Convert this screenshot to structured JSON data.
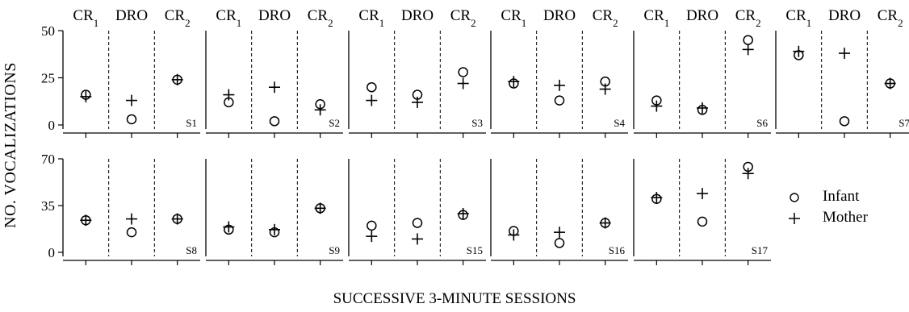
{
  "figure": {
    "ylabel": "NO. VOCALIZATIONS",
    "xlabel": "SUCCESSIVE 3-MINUTE SESSIONS"
  },
  "legend": {
    "infant": "Infant",
    "mother": "Mother"
  },
  "chart_data": {
    "type": "scatter",
    "phases": [
      "CR1",
      "DRO",
      "CR2"
    ],
    "series": [
      {
        "name": "Infant",
        "marker": "circle"
      },
      {
        "name": "Mother",
        "marker": "plus"
      }
    ],
    "rows": [
      {
        "ylim": [
          0,
          50
        ],
        "yticks": [
          "0",
          "25",
          "50"
        ]
      },
      {
        "ylim": [
          0,
          70
        ],
        "yticks": [
          "0",
          "35",
          "70"
        ]
      }
    ],
    "panels": [
      {
        "subject": "S1",
        "row": 0,
        "infant": [
          16,
          3,
          24
        ],
        "mother": [
          15,
          13,
          24
        ]
      },
      {
        "subject": "S2",
        "row": 0,
        "infant": [
          12,
          2,
          11
        ],
        "mother": [
          16,
          20,
          8
        ]
      },
      {
        "subject": "S3",
        "row": 0,
        "infant": [
          20,
          16,
          28
        ],
        "mother": [
          13,
          12,
          22
        ]
      },
      {
        "subject": "S4",
        "row": 0,
        "infant": [
          22,
          13,
          23
        ],
        "mother": [
          23,
          21,
          19
        ]
      },
      {
        "subject": "S6",
        "row": 0,
        "infant": [
          13,
          8,
          45
        ],
        "mother": [
          10,
          9,
          40
        ]
      },
      {
        "subject": "S7",
        "row": 0,
        "infant": [
          37,
          2,
          22
        ],
        "mother": [
          39,
          38,
          22
        ]
      },
      {
        "subject": "S8",
        "row": 1,
        "infant": [
          24,
          15,
          25
        ],
        "mother": [
          24,
          25,
          25
        ]
      },
      {
        "subject": "S9",
        "row": 1,
        "infant": [
          17,
          15,
          33
        ],
        "mother": [
          19,
          17,
          33
        ]
      },
      {
        "subject": "S15",
        "row": 1,
        "infant": [
          20,
          22,
          28
        ],
        "mother": [
          12,
          10,
          29
        ]
      },
      {
        "subject": "S16",
        "row": 1,
        "infant": [
          16,
          7,
          22
        ],
        "mother": [
          13,
          15,
          22
        ]
      },
      {
        "subject": "S17",
        "row": 1,
        "infant": [
          40,
          23,
          64
        ],
        "mother": [
          41,
          44,
          59
        ]
      }
    ]
  }
}
